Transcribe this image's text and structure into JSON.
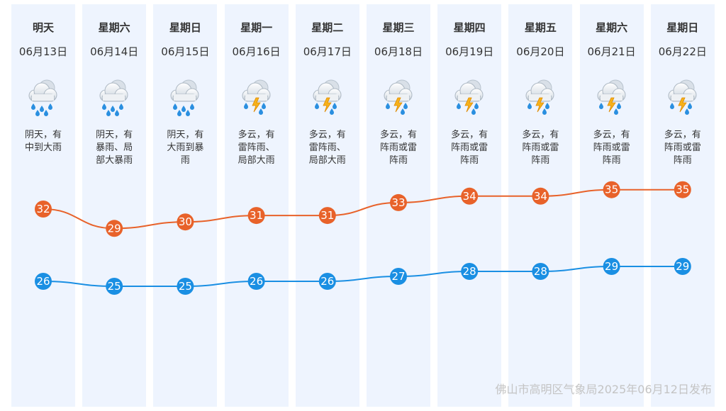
{
  "days": [
    {
      "day": "明天",
      "date": "06月13日",
      "desc": "阴天，有中到大雨",
      "icon": "cloudy-rain-icon",
      "high": 32,
      "low": 26
    },
    {
      "day": "星期六",
      "date": "06月14日",
      "desc": "阴天，有暴雨、局部大暴雨",
      "icon": "cloudy-rain-icon",
      "high": 29,
      "low": 25
    },
    {
      "day": "星期日",
      "date": "06月15日",
      "desc": "阴天，有大雨到暴雨",
      "icon": "cloudy-rain-icon",
      "high": 30,
      "low": 25
    },
    {
      "day": "星期一",
      "date": "06月16日",
      "desc": "多云，有雷阵雨、局部大雨",
      "icon": "thunder-shower-icon",
      "high": 31,
      "low": 26
    },
    {
      "day": "星期二",
      "date": "06月17日",
      "desc": "多云，有雷阵雨、局部大雨",
      "icon": "thunder-shower-icon",
      "high": 31,
      "low": 26
    },
    {
      "day": "星期三",
      "date": "06月18日",
      "desc": "多云，有阵雨或雷阵雨",
      "icon": "thunder-shower-icon",
      "high": 33,
      "low": 27
    },
    {
      "day": "星期四",
      "date": "06月19日",
      "desc": "多云，有阵雨或雷阵雨",
      "icon": "thunder-shower-icon",
      "high": 34,
      "low": 28
    },
    {
      "day": "星期五",
      "date": "06月20日",
      "desc": "多云，有阵雨或雷阵雨",
      "icon": "thunder-shower-icon",
      "high": 34,
      "low": 28
    },
    {
      "day": "星期六",
      "date": "06月21日",
      "desc": "多云，有阵雨或雷阵雨",
      "icon": "thunder-shower-icon",
      "high": 35,
      "low": 29
    },
    {
      "day": "星期日",
      "date": "06月22日",
      "desc": "多云，有阵雨或雷阵雨",
      "icon": "thunder-shower-icon",
      "high": 35,
      "low": 29
    }
  ],
  "footer": "佛山市高明区气象局2025年06月12日发布",
  "colors": {
    "high": "#e8622a",
    "low": "#1a8fe3",
    "column": "#eef4fe"
  }
}
